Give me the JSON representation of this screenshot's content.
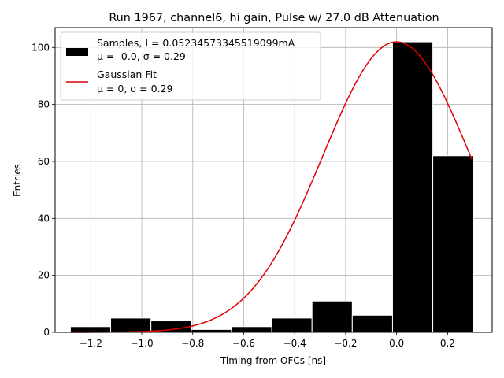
{
  "chart_data": {
    "type": "bar",
    "title": "Run 1967, channel6, hi gain, Pulse w/ 27.0 dB Attenuation",
    "xlabel": "Timing from OFCs [ns]",
    "ylabel": "Entries",
    "xlim": [
      -1.34,
      0.375
    ],
    "ylim": [
      0,
      107
    ],
    "xticks": [
      -1.2,
      -1.0,
      -0.8,
      -0.6,
      -0.4,
      -0.2,
      0.0,
      0.2
    ],
    "xtick_labels": [
      "−1.2",
      "−1.0",
      "−0.8",
      "−0.6",
      "−0.4",
      "−0.2",
      "0.0",
      "0.2"
    ],
    "yticks": [
      0,
      20,
      40,
      60,
      80,
      100
    ],
    "ytick_labels": [
      "0",
      "20",
      "40",
      "60",
      "80",
      "100"
    ],
    "grid": true,
    "legend_position": "upper-left",
    "histogram": {
      "name": "Samples, I = 0.05234573345519099mA",
      "stats": "μ = -0.0, σ = 0.29",
      "color": "#000000",
      "bins": [
        {
          "x0": -1.28,
          "x1": -1.122,
          "value": 2
        },
        {
          "x0": -1.122,
          "x1": -0.964,
          "value": 5
        },
        {
          "x0": -0.964,
          "x1": -0.806,
          "value": 4
        },
        {
          "x0": -0.806,
          "x1": -0.648,
          "value": 1
        },
        {
          "x0": -0.648,
          "x1": -0.49,
          "value": 2
        },
        {
          "x0": -0.49,
          "x1": -0.332,
          "value": 5
        },
        {
          "x0": -0.332,
          "x1": -0.174,
          "value": 11
        },
        {
          "x0": -0.174,
          "x1": -0.016,
          "value": 6
        },
        {
          "x0": -0.016,
          "x1": 0.142,
          "value": 102
        },
        {
          "x0": 0.142,
          "x1": 0.3,
          "value": 62
        }
      ]
    },
    "fit": {
      "name": "Gaussian Fit",
      "stats": "μ = 0, σ = 0.29",
      "color": "#e00000",
      "amplitude": 102,
      "mu": 0,
      "sigma": 0.29,
      "x_range": [
        -1.28,
        0.295
      ]
    }
  }
}
